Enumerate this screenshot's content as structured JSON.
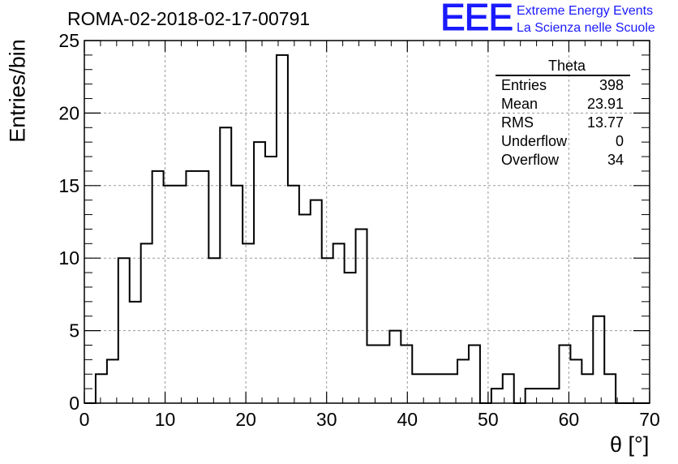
{
  "header": {
    "run_title": "ROMA-02-2018-02-17-00791",
    "logo_text": "EEE",
    "org_line1": "Extreme Energy Events",
    "org_line2": "La Scienza nelle Scuole"
  },
  "stats_box": {
    "title": "Theta",
    "rows": [
      {
        "label": "Entries",
        "value": "398"
      },
      {
        "label": "Mean",
        "value": "23.91"
      },
      {
        "label": "RMS",
        "value": "13.77"
      },
      {
        "label": "Underflow",
        "value": "0"
      },
      {
        "label": "Overflow",
        "value": "34"
      }
    ]
  },
  "colors": {
    "accent": "#1a1aff",
    "line": "#000000",
    "grid": "#9a9a9a"
  },
  "chart_data": {
    "type": "histogram",
    "title": "ROMA-02-2018-02-17-00791",
    "xlabel": "θ [°]",
    "ylabel": "Entries/bin",
    "xlim": [
      0,
      70
    ],
    "ylim": [
      0,
      25
    ],
    "bin_width": 1.4,
    "bin_edges_start": 0,
    "bin_counts": [
      0,
      2,
      3,
      10,
      7,
      11,
      16,
      15,
      15,
      16,
      16,
      10,
      19,
      15,
      11,
      18,
      17,
      24,
      15,
      13,
      14,
      10,
      11,
      9,
      12,
      4,
      4,
      5,
      4,
      2,
      2,
      2,
      2,
      3,
      4,
      0,
      1,
      2,
      0,
      1,
      1,
      1,
      4,
      3,
      2,
      6,
      2,
      0,
      0,
      0
    ],
    "x_ticks": [
      "0",
      "10",
      "20",
      "30",
      "40",
      "50",
      "60",
      "70"
    ],
    "y_ticks": [
      "0",
      "5",
      "10",
      "15",
      "20",
      "25"
    ],
    "grid": true,
    "legend": "stats box top-right"
  }
}
